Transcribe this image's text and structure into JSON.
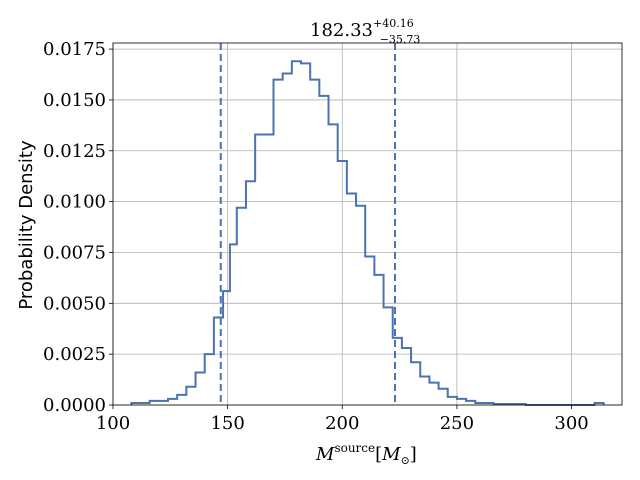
{
  "chart_data": {
    "type": "histogram",
    "title": {
      "main": "182.33",
      "sup": "+40.16",
      "sub": "−35.73"
    },
    "xlabel": {
      "base": "M",
      "sup": "source",
      "bracket_open": "[",
      "unit_base": "M",
      "unit_sub": "⊙",
      "bracket_close": "]"
    },
    "ylabel": "Probability Density",
    "xlim": [
      100,
      322
    ],
    "ylim": [
      0,
      0.0178
    ],
    "xticks": [
      100,
      150,
      200,
      250,
      300
    ],
    "xtick_labels": [
      "100",
      "150",
      "200",
      "250",
      "300"
    ],
    "yticks": [
      0,
      0.0025,
      0.005,
      0.0075,
      0.01,
      0.0125,
      0.015,
      0.0175
    ],
    "ytick_labels": [
      "0.0000",
      "0.0025",
      "0.0050",
      "0.0075",
      "0.0100",
      "0.0125",
      "0.0150",
      "0.0175"
    ],
    "grid": true,
    "histtype": "step",
    "bin_edges": [
      108,
      116,
      124,
      128,
      132,
      136,
      140,
      144,
      146,
      148,
      151,
      154,
      158,
      162,
      170,
      174,
      178,
      182,
      186,
      190,
      194,
      198,
      202,
      206,
      210,
      214,
      218,
      222,
      226,
      230,
      234,
      238,
      242,
      246,
      250,
      254,
      258,
      262,
      266,
      280,
      310,
      314
    ],
    "densities": [
      0.0001,
      0.0002,
      0.0003,
      0.0005,
      0.0009,
      0.0016,
      0.0025,
      0.0043,
      0.0043,
      0.0056,
      0.0079,
      0.0097,
      0.011,
      0.0133,
      0.016,
      0.0163,
      0.0169,
      0.0168,
      0.016,
      0.0152,
      0.0138,
      0.012,
      0.0104,
      0.0098,
      0.0073,
      0.0064,
      0.0048,
      0.0033,
      0.0028,
      0.0021,
      0.0014,
      0.0011,
      0.0008,
      0.0004,
      0.0003,
      0.0002,
      0.0001,
      0.0001,
      5e-05,
      0.0,
      0.0001
    ],
    "vlines": [
      147,
      223
    ],
    "colors": {
      "line": "#4c72b0",
      "grid": "#b0b0b0",
      "axes": "#000000"
    }
  }
}
